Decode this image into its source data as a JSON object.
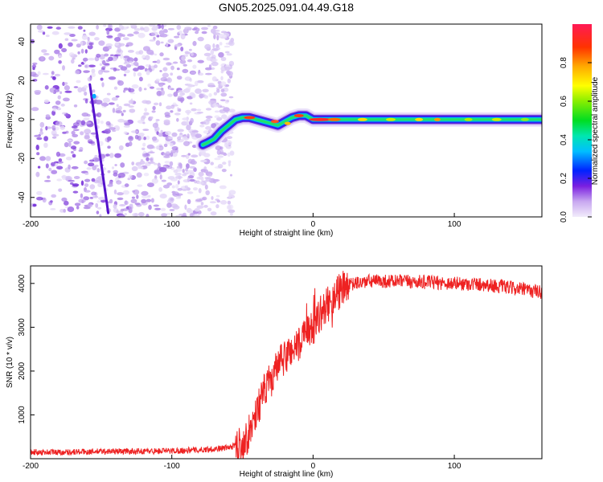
{
  "title": "GN05.2025.091.04.49.G18",
  "chart_data": [
    {
      "type": "heatmap",
      "name": "spectrogram",
      "xlabel": "Height of straight line (km)",
      "ylabel": "Frequency (Hz)",
      "xlim": [
        -200,
        162
      ],
      "ylim": [
        -50,
        49
      ],
      "x_ticks": [
        "-200",
        "-100",
        "0",
        "100"
      ],
      "x_tick_values": [
        -200,
        -100,
        0,
        100
      ],
      "y_ticks": [
        "40",
        "20",
        "0",
        "-20",
        "-40"
      ],
      "y_tick_values": [
        40,
        20,
        0,
        -20,
        -40
      ],
      "colorbar": {
        "label": "Normalized spectral amplitude",
        "range": [
          0,
          1
        ],
        "ticks": [
          "0.0",
          "0.2",
          "0.4",
          "0.6",
          "0.8"
        ],
        "tick_values": [
          0.0,
          0.2,
          0.4,
          0.6,
          0.8
        ]
      },
      "signal_track": {
        "x": [
          -78,
          -75,
          -70,
          -65,
          -60,
          -55,
          -50,
          -45,
          -40,
          -35,
          -30,
          -25,
          -20,
          -15,
          -10,
          -5,
          0,
          50,
          100,
          162
        ],
        "y": [
          -13,
          -12,
          -10,
          -6,
          -3,
          0,
          1,
          1,
          0,
          -1,
          -2,
          -3,
          -1,
          1,
          2,
          2,
          0,
          0,
          0,
          0
        ]
      },
      "noise_region_x": [
        -200,
        -57
      ],
      "streak": {
        "x": [
          -158,
          -145
        ],
        "y": [
          18,
          -48
        ]
      }
    },
    {
      "type": "line",
      "name": "snr",
      "xlabel": "Height of straight line (km)",
      "ylabel": "SNR (10 * v/v)",
      "xlim": [
        -200,
        162
      ],
      "ylim": [
        0,
        4400
      ],
      "x_ticks": [
        "-200",
        "-100",
        "0",
        "100"
      ],
      "x_tick_values": [
        -200,
        -100,
        0,
        100
      ],
      "y_ticks": [
        "4000",
        "3000",
        "2000",
        "1000"
      ],
      "y_tick_values": [
        4000,
        3000,
        2000,
        1000
      ],
      "color": "#ee2222",
      "series": [
        {
          "x": [
            -200,
            -180,
            -160,
            -140,
            -120,
            -100,
            -80,
            -60,
            -50,
            -45,
            -40,
            -35,
            -30,
            -25,
            -20,
            -15,
            -10,
            -5,
            0,
            5,
            10,
            15,
            20,
            25,
            30,
            40,
            60,
            80,
            100,
            120,
            140,
            162
          ],
          "values": [
            150,
            150,
            160,
            170,
            170,
            180,
            200,
            250,
            350,
            600,
            1100,
            1500,
            1800,
            2100,
            2300,
            2500,
            2600,
            2800,
            3000,
            3300,
            3500,
            3700,
            3850,
            3950,
            4000,
            4050,
            4050,
            4030,
            4000,
            3980,
            3900,
            3800
          ]
        }
      ]
    }
  ]
}
